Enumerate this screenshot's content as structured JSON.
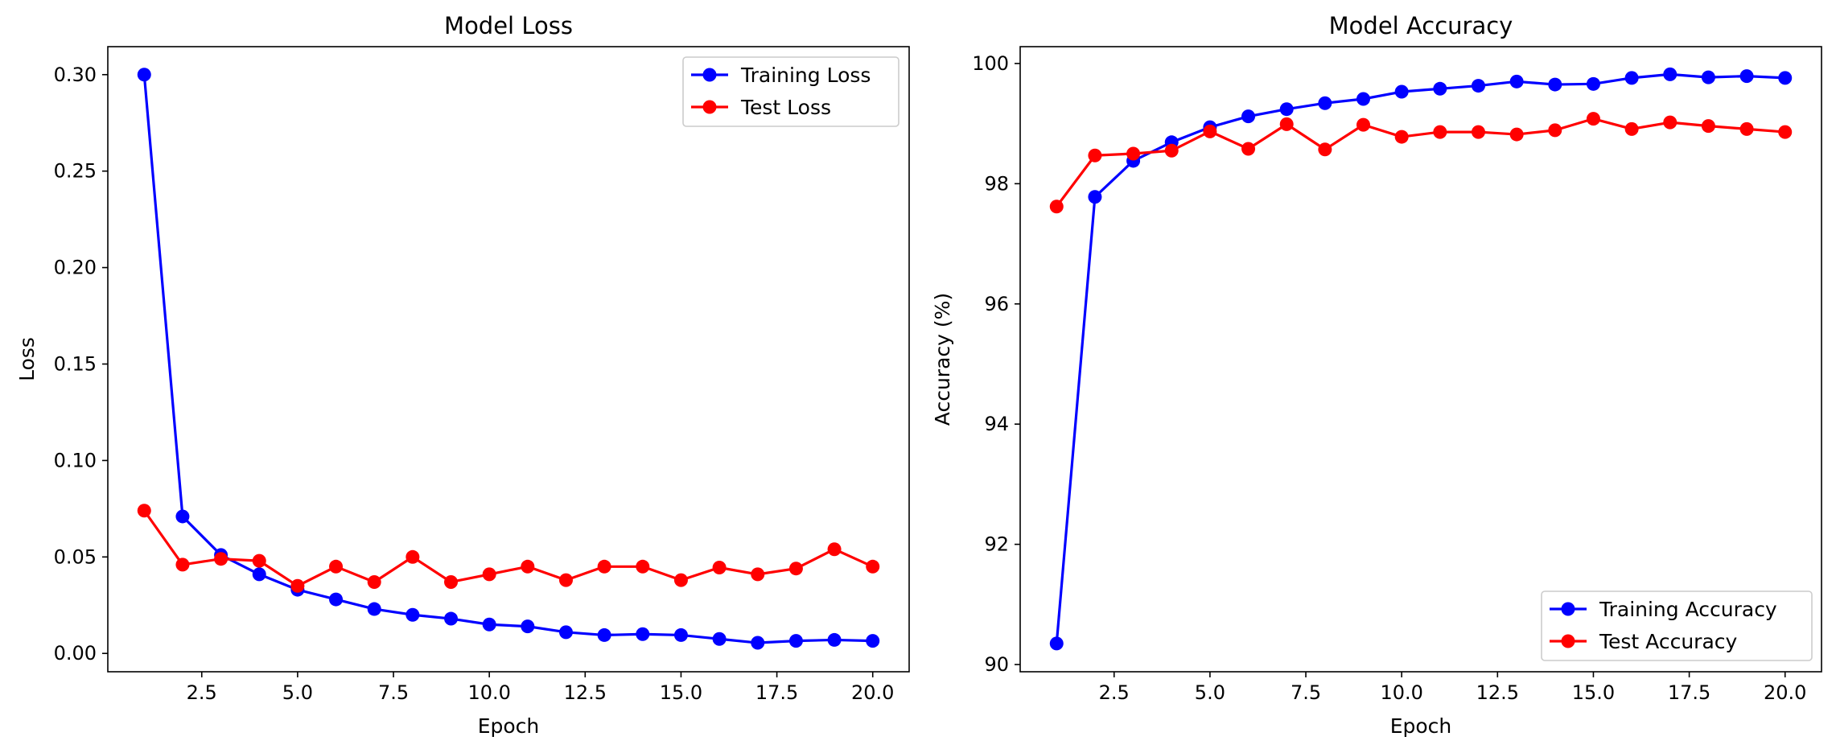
{
  "figure": {
    "background": "#ffffff"
  },
  "chart_data": [
    {
      "type": "line",
      "title": "Model Loss",
      "xlabel": "Epoch",
      "ylabel": "Loss",
      "xlim": [
        0.05,
        20.95
      ],
      "ylim": [
        -0.0095,
        0.3145
      ],
      "xticks": [
        2.5,
        5.0,
        7.5,
        10.0,
        12.5,
        15.0,
        17.5,
        20.0
      ],
      "xtick_labels": [
        "2.5",
        "5.0",
        "7.5",
        "10.0",
        "12.5",
        "15.0",
        "17.5",
        "20.0"
      ],
      "yticks": [
        0.0,
        0.05,
        0.1,
        0.15,
        0.2,
        0.25,
        0.3
      ],
      "ytick_labels": [
        "0.00",
        "0.05",
        "0.10",
        "0.15",
        "0.20",
        "0.25",
        "0.30"
      ],
      "grid": false,
      "legend_position": "top-right",
      "x": [
        1,
        2,
        3,
        4,
        5,
        6,
        7,
        8,
        9,
        10,
        11,
        12,
        13,
        14,
        15,
        16,
        17,
        18,
        19,
        20
      ],
      "series": [
        {
          "name": "Training Loss",
          "color": "#0000ff",
          "marker": "circle",
          "values": [
            0.3,
            0.071,
            0.051,
            0.041,
            0.033,
            0.028,
            0.023,
            0.02,
            0.018,
            0.015,
            0.014,
            0.011,
            0.0095,
            0.01,
            0.0095,
            0.0075,
            0.0055,
            0.0065,
            0.007,
            0.0065
          ]
        },
        {
          "name": "Test Loss",
          "color": "#ff0000",
          "marker": "circle",
          "values": [
            0.074,
            0.046,
            0.049,
            0.048,
            0.035,
            0.045,
            0.037,
            0.05,
            0.037,
            0.041,
            0.045,
            0.038,
            0.045,
            0.045,
            0.038,
            0.0445,
            0.041,
            0.044,
            0.054,
            0.045
          ]
        }
      ]
    },
    {
      "type": "line",
      "title": "Model Accuracy",
      "xlabel": "Epoch",
      "ylabel": "Accuracy (%)",
      "xlim": [
        0.05,
        20.95
      ],
      "ylim": [
        89.88,
        100.28
      ],
      "xticks": [
        2.5,
        5.0,
        7.5,
        10.0,
        12.5,
        15.0,
        17.5,
        20.0
      ],
      "xtick_labels": [
        "2.5",
        "5.0",
        "7.5",
        "10.0",
        "12.5",
        "15.0",
        "17.5",
        "20.0"
      ],
      "yticks": [
        90,
        92,
        94,
        96,
        98,
        100
      ],
      "ytick_labels": [
        "90",
        "92",
        "94",
        "96",
        "98",
        "100"
      ],
      "grid": false,
      "legend_position": "bottom-right",
      "x": [
        1,
        2,
        3,
        4,
        5,
        6,
        7,
        8,
        9,
        10,
        11,
        12,
        13,
        14,
        15,
        16,
        17,
        18,
        19,
        20
      ],
      "series": [
        {
          "name": "Training Accuracy",
          "color": "#0000ff",
          "marker": "circle",
          "values": [
            90.35,
            97.78,
            98.38,
            98.69,
            98.94,
            99.12,
            99.24,
            99.34,
            99.41,
            99.53,
            99.58,
            99.63,
            99.7,
            99.65,
            99.66,
            99.76,
            99.82,
            99.77,
            99.79,
            99.76
          ]
        },
        {
          "name": "Test Accuracy",
          "color": "#ff0000",
          "marker": "circle",
          "values": [
            97.62,
            98.47,
            98.5,
            98.55,
            98.87,
            98.58,
            98.99,
            98.57,
            98.98,
            98.78,
            98.86,
            98.86,
            98.82,
            98.89,
            99.08,
            98.91,
            99.02,
            98.96,
            98.91,
            98.86
          ]
        }
      ]
    }
  ]
}
